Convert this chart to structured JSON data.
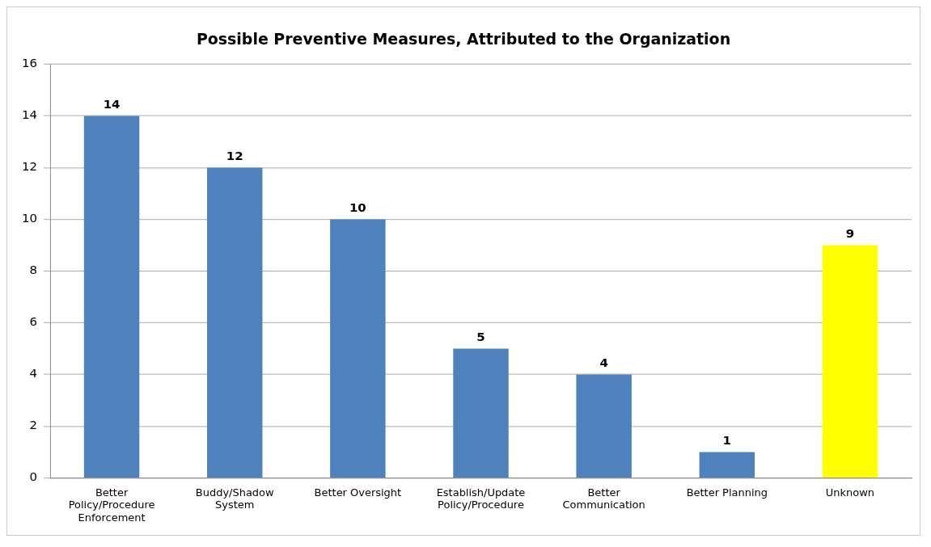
{
  "chart_data": {
    "type": "bar",
    "title": "Possible Preventive Measures, Attributed to the Organization",
    "categories": [
      "Better Policy/Procedure Enforcement",
      "Buddy/Shadow System",
      "Better Oversight",
      "Establish/Update Policy/Procedure",
      "Better Communication",
      "Better Planning",
      "Unknown"
    ],
    "values": [
      14,
      12,
      10,
      5,
      4,
      1,
      9
    ],
    "colors": [
      "#4f81bd",
      "#4f81bd",
      "#4f81bd",
      "#4f81bd",
      "#4f81bd",
      "#4f81bd",
      "#ffff00"
    ],
    "ylim": [
      0,
      16
    ],
    "yticks": [
      0,
      2,
      4,
      6,
      8,
      10,
      12,
      14,
      16
    ],
    "grid": "y",
    "data_labels": true
  }
}
